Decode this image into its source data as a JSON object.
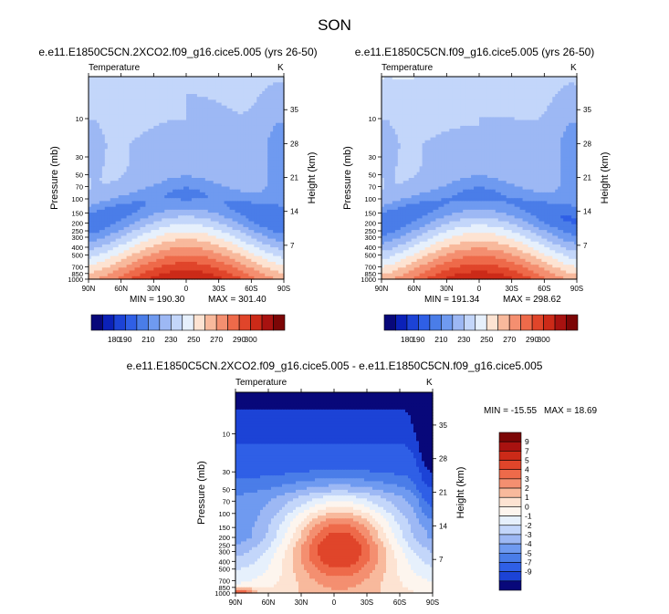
{
  "page_title": "SON",
  "chart_data": [
    {
      "type": "heatmap",
      "id": "top-left",
      "title": "e.e11.E1850C5CN.2XCO2.f09_g16.cice5.005 (yrs 26-50)",
      "variable_label": "Temperature",
      "units": "K",
      "xlabel": "",
      "ylabel": "Pressure (mb)",
      "ylabel_right": "Height (km)",
      "x_ticks": [
        "90N",
        "60N",
        "30N",
        "0",
        "30S",
        "60S",
        "90S"
      ],
      "y_ticks": [
        "10",
        "30",
        "50",
        "70",
        "100",
        "150",
        "200",
        "250",
        "300",
        "400",
        "500",
        "700",
        "850",
        "1000"
      ],
      "y_ticks_right": [
        "35",
        "28",
        "21",
        "14",
        "7"
      ],
      "ylim_mb": [
        1000,
        3
      ],
      "min_label": "MIN = 190.30",
      "max_label": "MAX = 301.40",
      "min": 190.3,
      "max": 301.4,
      "scenario": "2xco2"
    },
    {
      "type": "heatmap",
      "id": "top-right",
      "title": "e.e11.E1850C5CN.f09_g16.cice5.005 (yrs 26-50)",
      "variable_label": "Temperature",
      "units": "K",
      "xlabel": "",
      "ylabel": "Pressure (mb)",
      "ylabel_right": "Height (km)",
      "x_ticks": [
        "90N",
        "60N",
        "30N",
        "0",
        "30S",
        "60S",
        "90S"
      ],
      "y_ticks": [
        "10",
        "30",
        "50",
        "70",
        "100",
        "150",
        "200",
        "250",
        "300",
        "400",
        "500",
        "700",
        "850",
        "1000"
      ],
      "y_ticks_right": [
        "35",
        "28",
        "21",
        "14",
        "7"
      ],
      "ylim_mb": [
        1000,
        3
      ],
      "min_label": "MIN = 191.34",
      "max_label": "MAX = 298.62",
      "min": 191.34,
      "max": 298.62,
      "scenario": "control"
    },
    {
      "type": "heatmap",
      "id": "difference",
      "title": "e.e11.E1850C5CN.2XCO2.f09_g16.cice5.005 - e.e11.E1850C5CN.f09_g16.cice5.005",
      "variable_label": "Temperature",
      "units": "K",
      "xlabel": "",
      "ylabel": "Pressure (mb)",
      "ylabel_right": "Height (km)",
      "x_ticks": [
        "90N",
        "60N",
        "30N",
        "0",
        "30S",
        "60S",
        "90S"
      ],
      "y_ticks": [
        "10",
        "30",
        "50",
        "70",
        "100",
        "150",
        "200",
        "250",
        "300",
        "400",
        "500",
        "700",
        "850",
        "1000"
      ],
      "y_ticks_right": [
        "35",
        "28",
        "21",
        "14",
        "7"
      ],
      "ylim_mb": [
        1000,
        3
      ],
      "min_label": "MIN = -15.55",
      "max_label": "MAX =  18.69",
      "min": -15.55,
      "max": 18.69,
      "scenario": "diff"
    }
  ],
  "abs_colorbar": {
    "levels": [
      170,
      180,
      190,
      200,
      210,
      220,
      230,
      240,
      250,
      260,
      270,
      280,
      290,
      300
    ],
    "labels": [
      "180",
      "190",
      "210",
      "230",
      "250",
      "270",
      "290",
      "300"
    ],
    "colors": [
      "#08087a",
      "#0b21b8",
      "#1c43d6",
      "#2f5fe6",
      "#4a7de8",
      "#6f9af0",
      "#9db8f4",
      "#c3d6fa",
      "#e6f0fc",
      "#fde3d2",
      "#f8b99c",
      "#f48f70",
      "#ee6a4a",
      "#e0452a",
      "#cc2a18",
      "#a81210",
      "#7c0606"
    ]
  },
  "diff_colorbar": {
    "labels": [
      "9",
      "7",
      "5",
      "4",
      "3",
      "2",
      "1",
      "0",
      "-1",
      "-2",
      "-3",
      "-4",
      "-5",
      "-7",
      "-9"
    ],
    "colors": [
      "#7c0606",
      "#a81210",
      "#cc2a18",
      "#e0452a",
      "#ee6a4a",
      "#f48f70",
      "#f8b99c",
      "#fde3d2",
      "#fdf5ee",
      "#e6f0fc",
      "#c3d6fa",
      "#9db8f4",
      "#6f9af0",
      "#4a7de8",
      "#2f5fe6",
      "#1c43d6",
      "#08087a"
    ]
  }
}
